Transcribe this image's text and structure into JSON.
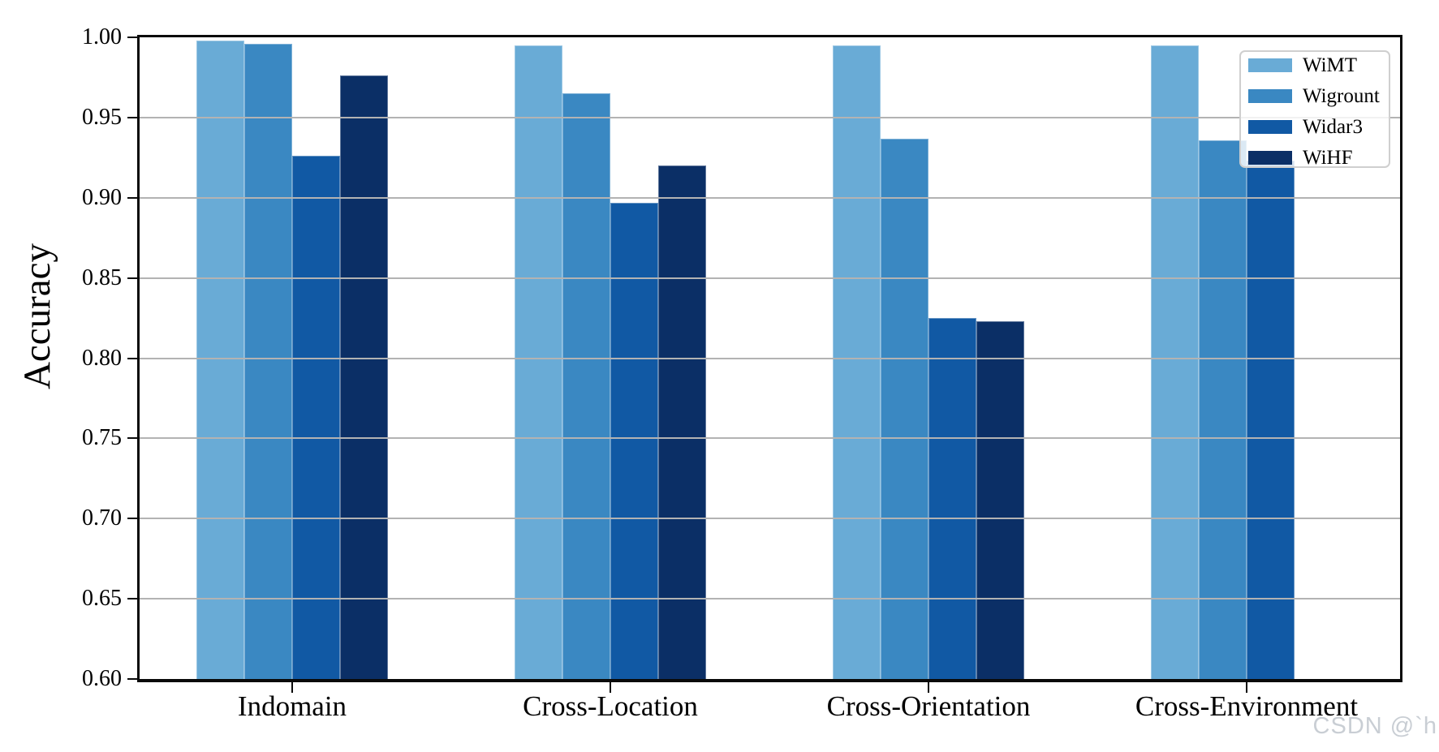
{
  "chart_data": {
    "type": "bar",
    "title": "",
    "xlabel": "",
    "ylabel": "Accuracy",
    "categories": [
      "Indomain",
      "Cross-Location",
      "Cross-Orientation",
      "Cross-Environment"
    ],
    "series": [
      {
        "name": "WiMT",
        "color": "#69abd6",
        "values": [
          0.998,
          0.995,
          0.995,
          0.995
        ]
      },
      {
        "name": "Wigrount",
        "color": "#3a88c2",
        "values": [
          0.996,
          0.965,
          0.937,
          0.936
        ]
      },
      {
        "name": "Widar3",
        "color": "#1159a4",
        "values": [
          0.926,
          0.897,
          0.825,
          0.923
        ]
      },
      {
        "name": "WiHF",
        "color": "#0b2f66",
        "values": [
          0.976,
          0.92,
          0.823,
          null
        ]
      }
    ],
    "ylim": [
      0.6,
      1.0
    ],
    "ytick_step": 0.05,
    "ytick_labels": [
      "0.60",
      "0.65",
      "0.70",
      "0.75",
      "0.80",
      "0.85",
      "0.90",
      "0.95",
      "1.00"
    ],
    "grid": true,
    "grid_color": "#b3b3b3",
    "grid_on_top_of_bars": true,
    "legend_position": "upper right",
    "axis_color": "#0a0a0a"
  },
  "watermark": "CSDN @`h"
}
